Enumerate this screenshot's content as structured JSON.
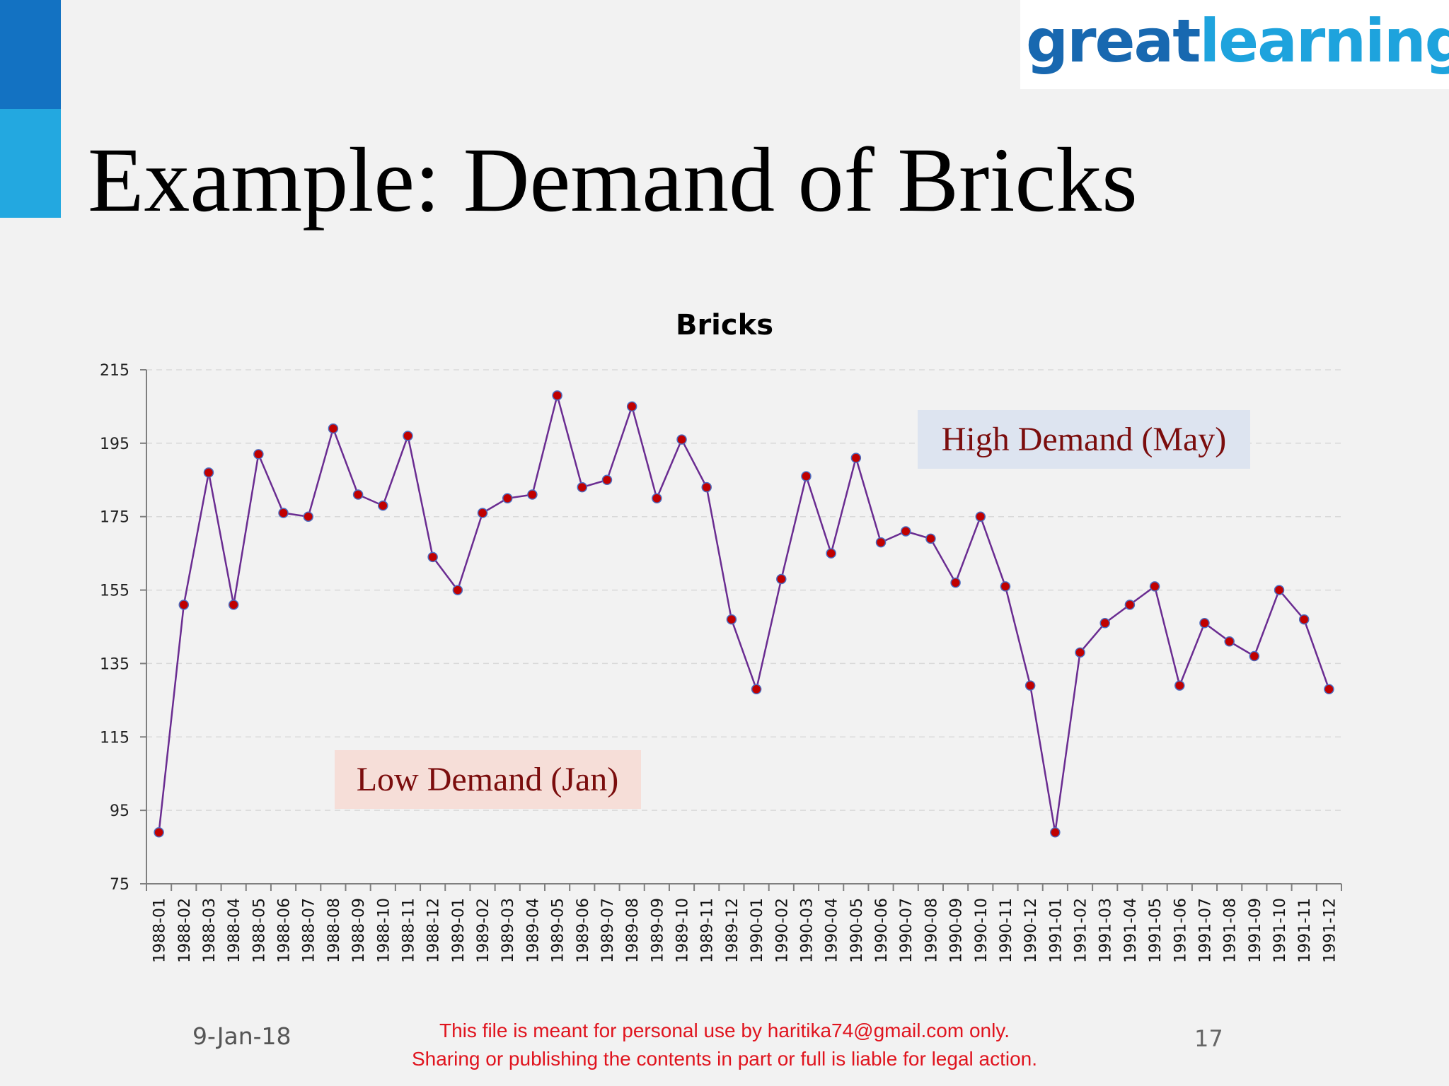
{
  "logo": {
    "part1": "great",
    "part2": "learning"
  },
  "slide": {
    "title": "Example: Demand of Bricks"
  },
  "footer": {
    "date": "9-Jan-18",
    "notice_line1": "This file is meant for personal use by haritika74@gmail.com only.",
    "notice_line2": "Sharing or publishing the contents in part or full is liable for legal action.",
    "page_number": "17"
  },
  "colors": {
    "accent_dark": "#1372c2",
    "accent_light": "#23a8e0",
    "series_line": "#6a2c91",
    "marker_fill": "#c00000",
    "high_box": "#dde4f0",
    "low_box": "#f6ded8",
    "annotation_text": "#7b0d0d"
  },
  "chart_data": {
    "type": "line",
    "title": "Bricks",
    "xlabel": "",
    "ylabel": "",
    "ylim": [
      75,
      215
    ],
    "yticks": [
      75,
      95,
      115,
      135,
      155,
      175,
      195,
      215
    ],
    "grid": true,
    "legend": "none",
    "categories": [
      "1988-01",
      "1988-02",
      "1988-03",
      "1988-04",
      "1988-05",
      "1988-06",
      "1988-07",
      "1988-08",
      "1988-09",
      "1988-10",
      "1988-11",
      "1988-12",
      "1989-01",
      "1989-02",
      "1989-03",
      "1989-04",
      "1989-05",
      "1989-06",
      "1989-07",
      "1989-08",
      "1989-09",
      "1989-10",
      "1989-11",
      "1989-12",
      "1990-01",
      "1990-02",
      "1990-03",
      "1990-04",
      "1990-05",
      "1990-06",
      "1990-07",
      "1990-08",
      "1990-09",
      "1990-10",
      "1990-11",
      "1990-12",
      "1991-01",
      "1991-02",
      "1991-03",
      "1991-04",
      "1991-05",
      "1991-06",
      "1991-07",
      "1991-08",
      "1991-09",
      "1991-10",
      "1991-11",
      "1991-12"
    ],
    "series": [
      {
        "values": [
          89,
          151,
          187,
          151,
          192,
          176,
          175,
          199,
          181,
          178,
          197,
          164,
          155,
          176,
          180,
          181,
          208,
          183,
          185,
          205,
          180,
          196,
          183,
          147,
          128,
          158,
          186,
          165,
          191,
          168,
          171,
          169,
          157,
          175,
          156,
          129,
          89,
          138,
          146,
          151,
          156,
          129,
          146,
          141,
          137,
          155,
          147,
          128
        ]
      }
    ],
    "annotations": [
      {
        "text": "High Demand (May)",
        "style": "high"
      },
      {
        "text": "Low Demand (Jan)",
        "style": "low"
      }
    ]
  }
}
